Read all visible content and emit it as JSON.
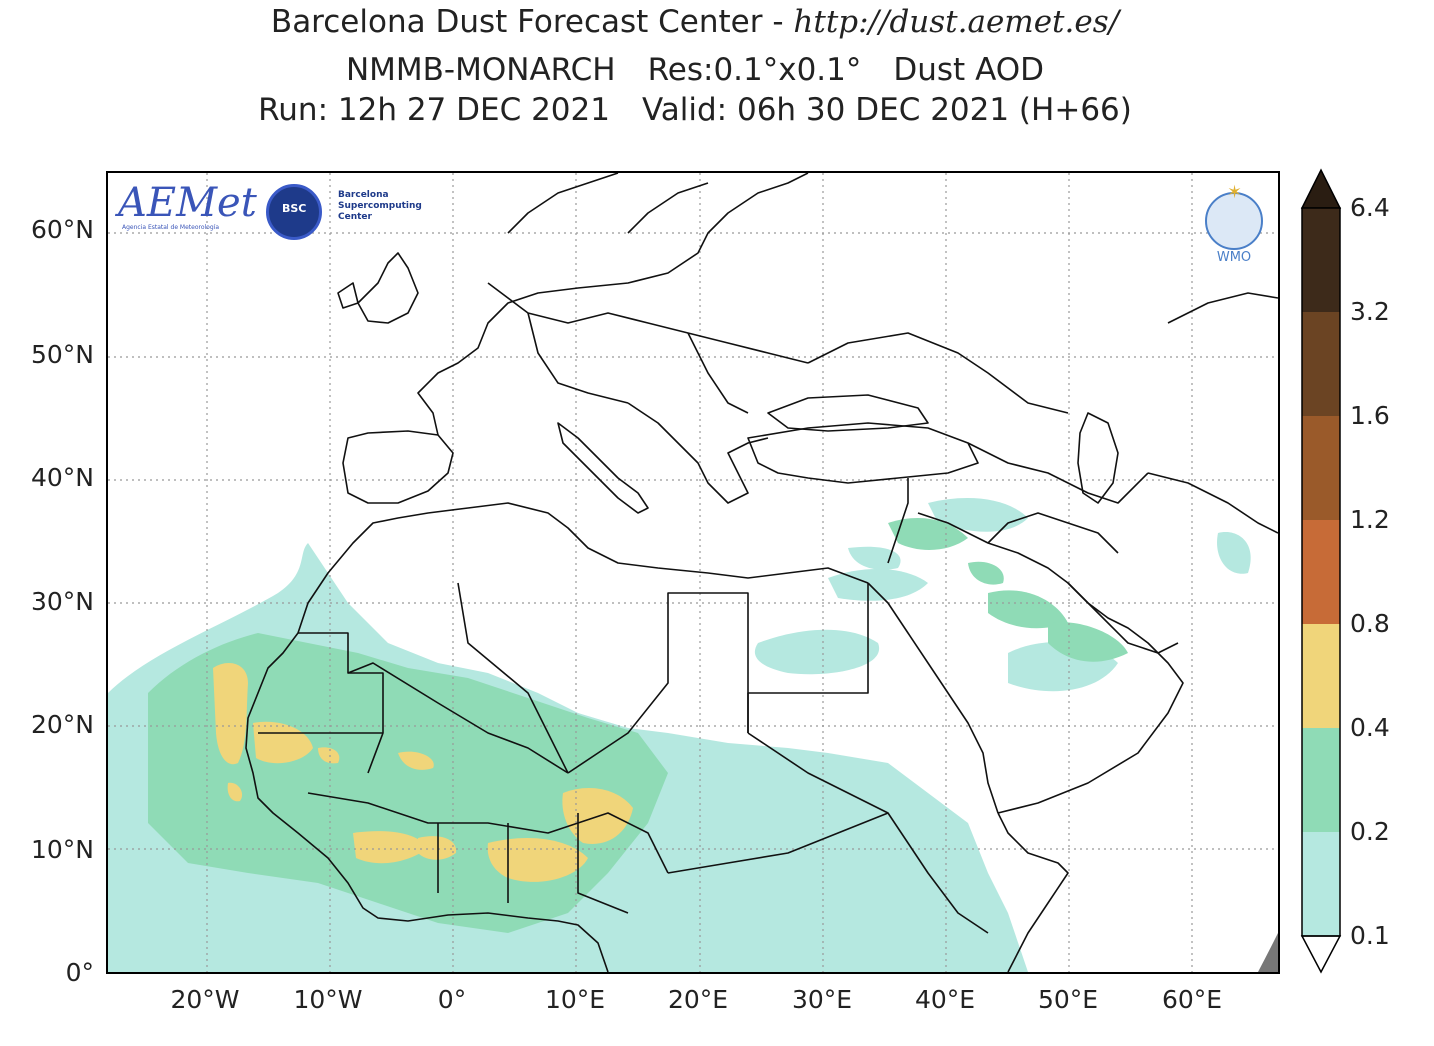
{
  "title": {
    "line1": "Barcelona Dust Forecast Center - ",
    "url": "http://dust.aemet.es/",
    "model": "NMMB-MONARCH",
    "resolution": "Res:0.1°x0.1°",
    "variable": "Dust AOD",
    "run": "Run: 12h 27 DEC 2021",
    "valid": "Valid: 06h 30 DEC 2021 (H+66)"
  },
  "logos": {
    "aemet": "AEMet",
    "aemet_sub": "Agencia Estatal de Meteorología",
    "bsc": "BSC",
    "bsc_text": [
      "Barcelona",
      "Supercomputing",
      "Center"
    ],
    "wmo": "WMO"
  },
  "axes": {
    "lat_labels": [
      "60°N",
      "50°N",
      "40°N",
      "30°N",
      "20°N",
      "10°N",
      "0°"
    ],
    "lat_values": [
      60,
      50,
      40,
      30,
      20,
      10,
      0
    ],
    "lon_labels": [
      "20°W",
      "10°W",
      "0°",
      "10°E",
      "20°E",
      "30°E",
      "40°E",
      "50°E",
      "60°E"
    ],
    "lon_values": [
      -20,
      -10,
      0,
      10,
      20,
      30,
      40,
      50,
      60
    ],
    "extent": {
      "lon": [
        -28,
        67
      ],
      "lat": [
        0,
        65
      ]
    },
    "grid": "dotted"
  },
  "colorbar": {
    "levels": [
      "0.1",
      "0.2",
      "0.4",
      "0.8",
      "1.2",
      "1.6",
      "3.2",
      "6.4"
    ],
    "colors": [
      "#b5e8e0",
      "#8fdbb6",
      "#f0d57a",
      "#c76b37",
      "#9a5a2a",
      "#6b4423",
      "#3d2a1a"
    ],
    "extend": "both",
    "under_color": "#ffffff",
    "over_color": "#2a1d12"
  },
  "colors": {
    "land_border": "#000000",
    "grid": "#999999",
    "nodata": "#777777"
  }
}
